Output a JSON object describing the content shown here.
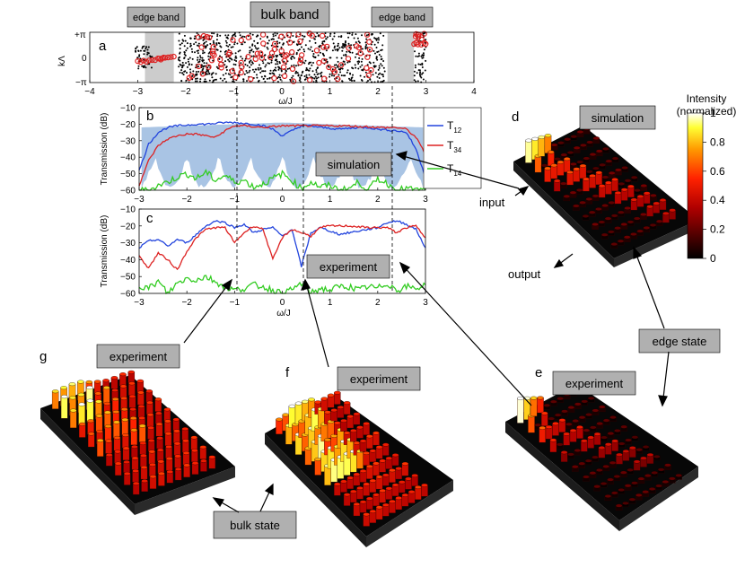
{
  "figure": {
    "panel_letters": [
      "a",
      "b",
      "c",
      "d",
      "e",
      "f",
      "g"
    ],
    "labels": {
      "bulk_band": "bulk band",
      "edge_band_left": "edge band",
      "edge_band_right": "edge band",
      "simulation_b": "simulation",
      "experiment_c": "experiment",
      "simulation_d": "simulation",
      "experiment_e": "experiment",
      "experiment_f": "experiment",
      "experiment_g": "experiment",
      "edge_state": "edge state",
      "bulk_state": "bulk state",
      "input": "input",
      "output": "output"
    },
    "colorbar": {
      "title_line1": "Intensity",
      "title_line2": "(normalized)",
      "ticks": [
        "1",
        "0.8",
        "0.6",
        "0.4",
        "0.2",
        "0"
      ]
    },
    "colors": {
      "T12": "#2244dd",
      "T34": "#dd2222",
      "T14": "#33cc22",
      "bulk_shade": "#a9c4e4",
      "edge_shade": "#cccccc"
    }
  },
  "chart_data": [
    {
      "id": "a",
      "type": "scatter",
      "xlabel": "ω/J",
      "ylabel": "kΛ",
      "xlim": [
        -4,
        4
      ],
      "ylim": [
        -3.1416,
        3.1416
      ],
      "xticks": [
        "−4",
        "−3",
        "−2",
        "−1",
        "0",
        "1",
        "2",
        "3",
        "4"
      ],
      "yticks": [
        "+π",
        "0",
        "−π"
      ],
      "edge_bands": [
        [
          -2.85,
          -2.25
        ],
        [
          2.2,
          2.75
        ]
      ],
      "bulk_band": [
        -2.0,
        2.0
      ],
      "series": [
        {
          "name": "numerical eigenmodes",
          "color": "#000000",
          "marker": "dot"
        },
        {
          "name": "measured modes",
          "color": "#dd2222",
          "marker": "circle"
        }
      ]
    },
    {
      "id": "b",
      "type": "line",
      "xlabel": "",
      "ylabel": "Transmission (dB)",
      "xlim": [
        -3,
        3
      ],
      "ylim": [
        -60,
        -10
      ],
      "xticks": [
        "−3",
        "−2",
        "−1",
        "0",
        "1",
        "2",
        "3"
      ],
      "yticks": [
        "−10",
        "−20",
        "−30",
        "−40",
        "−50",
        "−60"
      ],
      "legend": [
        "T12",
        "T34",
        "T14"
      ],
      "legend_position": "top-right",
      "x": [
        -3.0,
        -2.8,
        -2.6,
        -2.4,
        -2.2,
        -2.0,
        -1.8,
        -1.6,
        -1.4,
        -1.2,
        -1.0,
        -0.8,
        -0.6,
        -0.4,
        -0.2,
        0.0,
        0.2,
        0.4,
        0.6,
        0.8,
        1.0,
        1.2,
        1.4,
        1.6,
        1.8,
        2.0,
        2.2,
        2.4,
        2.6,
        2.8,
        3.0
      ],
      "series": [
        {
          "name": "T12",
          "values": [
            -48,
            -32,
            -25,
            -22,
            -21,
            -20.5,
            -20,
            -20,
            -19.5,
            -19,
            -19,
            -19.5,
            -20,
            -21,
            -23,
            -27,
            -24,
            -21,
            -21,
            -22,
            -22.5,
            -23,
            -22.5,
            -22,
            -22,
            -23,
            -23.5,
            -24,
            -25,
            -35,
            -52
          ]
        },
        {
          "name": "T34",
          "values": [
            -57,
            -42,
            -33,
            -29,
            -27,
            -26,
            -26,
            -27,
            -28,
            -24,
            -21,
            -21,
            -21.5,
            -22,
            -21.5,
            -21,
            -21,
            -21,
            -21,
            -21,
            -21,
            -21,
            -21,
            -21.5,
            -21.5,
            -22,
            -22,
            -22,
            -23,
            -28,
            -38
          ]
        },
        {
          "name": "T14",
          "values": [
            -60,
            -60,
            -57,
            -55,
            -52,
            -50,
            -53,
            -49,
            -54,
            -51,
            -55,
            -54,
            -58,
            -56,
            -53,
            -50,
            -54,
            -59,
            -55,
            -58,
            -57,
            -60,
            -59,
            -55,
            -60,
            -53,
            -56,
            -60,
            -59,
            -60,
            -60
          ]
        }
      ]
    },
    {
      "id": "c",
      "type": "line",
      "xlabel": "ω/J",
      "ylabel": "Transmission (dB)",
      "xlim": [
        -3,
        3
      ],
      "ylim": [
        -60,
        -10
      ],
      "xticks": [
        "−3",
        "−2",
        "−1",
        "0",
        "1",
        "2",
        "3"
      ],
      "yticks": [
        "−10",
        "−20",
        "−30",
        "−40",
        "−50",
        "−60"
      ],
      "x": [
        -3.0,
        -2.8,
        -2.6,
        -2.4,
        -2.2,
        -2.0,
        -1.8,
        -1.6,
        -1.4,
        -1.2,
        -1.0,
        -0.8,
        -0.6,
        -0.4,
        -0.2,
        0.0,
        0.2,
        0.4,
        0.6,
        0.8,
        1.0,
        1.2,
        1.4,
        1.6,
        1.8,
        2.0,
        2.2,
        2.4,
        2.6,
        2.8,
        3.0
      ],
      "series": [
        {
          "name": "T12",
          "values": [
            -33,
            -29,
            -28,
            -32,
            -28,
            -30,
            -25,
            -20,
            -17,
            -18,
            -21,
            -19,
            -24,
            -22,
            -21,
            -26,
            -22,
            -44,
            -24,
            -21,
            -23,
            -25,
            -24,
            -23,
            -22,
            -21,
            -18,
            -17,
            -19,
            -22,
            -33
          ]
        },
        {
          "name": "T34",
          "values": [
            -38,
            -45,
            -36,
            -40,
            -46,
            -35,
            -27,
            -22,
            -21,
            -21,
            -30,
            -24,
            -20,
            -22,
            -40,
            -27,
            -22,
            -24,
            -26,
            -21,
            -20,
            -20,
            -20,
            -20.5,
            -21,
            -21,
            -21,
            -24,
            -21,
            -20,
            -27
          ]
        },
        {
          "name": "T14",
          "values": [
            -55,
            -57,
            -53,
            -60,
            -54,
            -51,
            -52,
            -50,
            -53,
            -56,
            -58,
            -57,
            -55,
            -56,
            -58,
            -60,
            -58,
            -54,
            -60,
            -57,
            -58,
            -56,
            -56,
            -58,
            -56,
            -57,
            -54,
            -58,
            -56,
            -57,
            -55
          ]
        }
      ]
    }
  ]
}
